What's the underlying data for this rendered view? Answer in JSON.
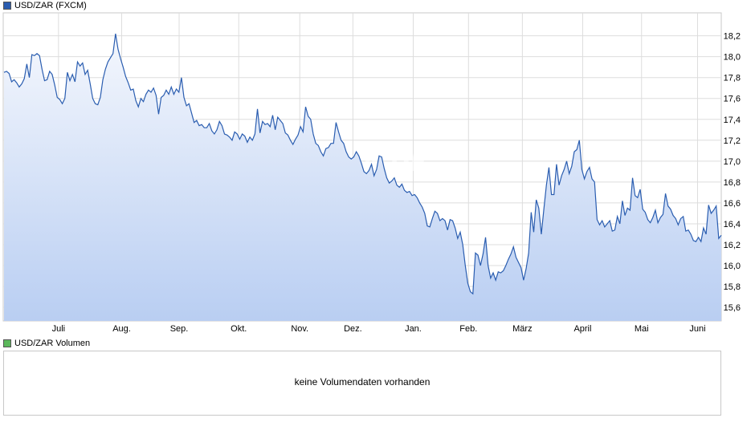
{
  "price_legend": {
    "label": "USD/ZAR (FXCM)",
    "color": "#2a5db0"
  },
  "volume_legend": {
    "label": "USD/ZAR Volumen",
    "color": "#5cb85c"
  },
  "volume_message": "keine Volumendaten vorhanden",
  "watermark": "ARIVA.DE",
  "chart_data": {
    "type": "area",
    "title": "USD/ZAR (FXCM)",
    "xlabel": "",
    "ylabel": "",
    "ylim": [
      15.47,
      18.42
    ],
    "y_ticks": [
      15.6,
      15.8,
      16.0,
      16.2,
      16.4,
      16.6,
      16.8,
      17.0,
      17.2,
      17.4,
      17.6,
      17.8,
      18.0,
      18.2
    ],
    "y_tick_labels": [
      "15,6",
      "15,8",
      "16,0",
      "16,2",
      "16,4",
      "16,6",
      "16,8",
      "17,0",
      "17,2",
      "17,4",
      "17,6",
      "17,8",
      "18,0",
      "18,2"
    ],
    "x_ticks": [
      {
        "label": "Juli",
        "t": 0.077
      },
      {
        "label": "Aug.",
        "t": 0.165
      },
      {
        "label": "Sep.",
        "t": 0.245
      },
      {
        "label": "Okt.",
        "t": 0.328
      },
      {
        "label": "Nov.",
        "t": 0.413
      },
      {
        "label": "Dez.",
        "t": 0.487
      },
      {
        "label": "Jan.",
        "t": 0.571
      },
      {
        "label": "Feb.",
        "t": 0.648
      },
      {
        "label": "März",
        "t": 0.723
      },
      {
        "label": "April",
        "t": 0.807
      },
      {
        "label": "Mai",
        "t": 0.889
      },
      {
        "label": "Juni",
        "t": 0.967
      }
    ],
    "grid": true,
    "series": [
      {
        "line_color": "#2a5db0",
        "fill_top": "#f4f7fd",
        "fill_bottom": "#b9cef2",
        "values": [
          17.85,
          17.86,
          17.84,
          17.76,
          17.78,
          17.75,
          17.71,
          17.74,
          17.79,
          17.93,
          17.8,
          18.02,
          18.01,
          18.03,
          18.01,
          17.88,
          17.77,
          17.78,
          17.86,
          17.83,
          17.73,
          17.61,
          17.59,
          17.55,
          17.6,
          17.85,
          17.77,
          17.83,
          17.76,
          17.95,
          17.91,
          17.94,
          17.83,
          17.87,
          17.74,
          17.6,
          17.55,
          17.54,
          17.61,
          17.78,
          17.88,
          17.95,
          17.99,
          18.03,
          18.22,
          18.07,
          17.98,
          17.9,
          17.81,
          17.75,
          17.68,
          17.69,
          17.58,
          17.52,
          17.6,
          17.57,
          17.64,
          17.68,
          17.66,
          17.7,
          17.63,
          17.45,
          17.61,
          17.63,
          17.68,
          17.64,
          17.71,
          17.64,
          17.69,
          17.66,
          17.8,
          17.61,
          17.53,
          17.55,
          17.46,
          17.37,
          17.39,
          17.34,
          17.35,
          17.32,
          17.32,
          17.36,
          17.29,
          17.26,
          17.3,
          17.38,
          17.34,
          17.26,
          17.25,
          17.23,
          17.2,
          17.28,
          17.26,
          17.21,
          17.26,
          17.24,
          17.18,
          17.23,
          17.2,
          17.26,
          17.5,
          17.27,
          17.38,
          17.35,
          17.36,
          17.33,
          17.44,
          17.3,
          17.42,
          17.39,
          17.36,
          17.27,
          17.25,
          17.2,
          17.16,
          17.21,
          17.25,
          17.33,
          17.28,
          17.52,
          17.43,
          17.4,
          17.26,
          17.17,
          17.15,
          17.09,
          17.05,
          17.12,
          17.13,
          17.17,
          17.17,
          17.37,
          17.28,
          17.2,
          17.17,
          17.09,
          17.04,
          17.02,
          17.04,
          17.09,
          17.05,
          16.98,
          16.9,
          16.88,
          16.91,
          16.97,
          16.86,
          16.92,
          17.05,
          17.04,
          16.93,
          16.84,
          16.79,
          16.81,
          16.84,
          16.77,
          16.75,
          16.78,
          16.72,
          16.7,
          16.71,
          16.67,
          16.68,
          16.65,
          16.6,
          16.56,
          16.5,
          16.38,
          16.37,
          16.45,
          16.52,
          16.5,
          16.43,
          16.45,
          16.43,
          16.34,
          16.44,
          16.43,
          16.36,
          16.26,
          16.32,
          16.2,
          16.0,
          15.83,
          15.75,
          15.73,
          16.12,
          16.1,
          16.0,
          16.11,
          16.27,
          16.0,
          15.88,
          15.93,
          15.86,
          15.94,
          15.93,
          15.95,
          16.0,
          16.06,
          16.11,
          16.18,
          16.08,
          16.03,
          15.98,
          15.86,
          15.97,
          16.12,
          16.51,
          16.32,
          16.63,
          16.55,
          16.3,
          16.54,
          16.77,
          16.94,
          16.68,
          16.68,
          16.97,
          16.77,
          16.86,
          16.92,
          17.0,
          16.88,
          16.95,
          17.09,
          17.11,
          17.2,
          16.92,
          16.83,
          16.9,
          16.94,
          16.83,
          16.8,
          16.44,
          16.39,
          16.43,
          16.37,
          16.4,
          16.43,
          16.33,
          16.34,
          16.47,
          16.4,
          16.62,
          16.48,
          16.55,
          16.53,
          16.84,
          16.67,
          16.65,
          16.73,
          16.54,
          16.51,
          16.44,
          16.41,
          16.46,
          16.53,
          16.41,
          16.46,
          16.49,
          16.69,
          16.57,
          16.54,
          16.48,
          16.45,
          16.39,
          16.45,
          16.47,
          16.33,
          16.34,
          16.3,
          16.24,
          16.23,
          16.27,
          16.23,
          16.36,
          16.3,
          16.58,
          16.5,
          16.53,
          16.57,
          16.26,
          16.29
        ]
      }
    ]
  }
}
